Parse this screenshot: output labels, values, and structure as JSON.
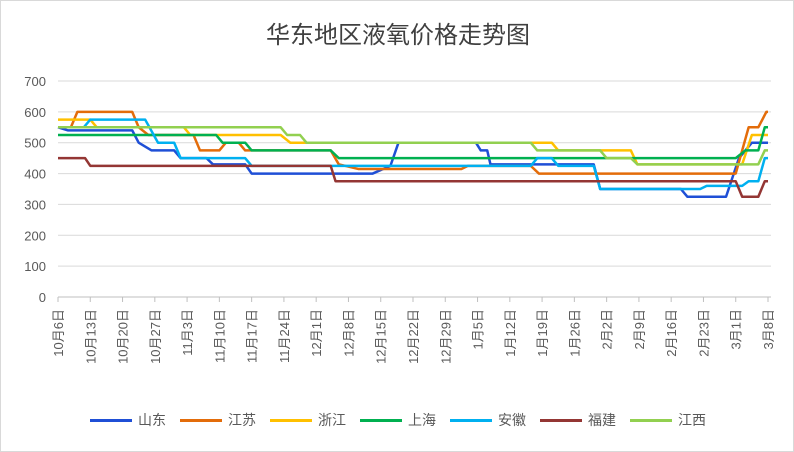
{
  "chart_data": {
    "type": "line",
    "title": "华东地区液氧价格走势图",
    "xlabel": "",
    "ylabel": "",
    "ylim": [
      0,
      700
    ],
    "yticks": [
      0,
      100,
      200,
      300,
      400,
      500,
      600,
      700
    ],
    "grid": true,
    "legend_position": "bottom",
    "categories": [
      "10月6日",
      "10月13日",
      "10月20日",
      "10月27日",
      "11月3日",
      "11月10日",
      "11月17日",
      "11月24日",
      "12月1日",
      "12月8日",
      "12月15日",
      "12月22日",
      "12月29日",
      "1月5日",
      "1月12日",
      "1月19日",
      "1月26日",
      "2月2日",
      "2月9日",
      "2月16日",
      "2月23日",
      "3月1日",
      "3月8日"
    ],
    "series": [
      {
        "name": "山东",
        "color": "#1f4fd6",
        "points": [
          [
            0,
            550
          ],
          [
            0.3,
            540
          ],
          [
            2.3,
            540
          ],
          [
            2.5,
            500
          ],
          [
            2.9,
            475
          ],
          [
            3.6,
            475
          ],
          [
            3.8,
            450
          ],
          [
            4.6,
            450
          ],
          [
            4.8,
            430
          ],
          [
            5.8,
            430
          ],
          [
            6.0,
            400
          ],
          [
            9.75,
            400
          ],
          [
            10.3,
            425
          ],
          [
            10.55,
            500
          ],
          [
            12.95,
            500
          ],
          [
            13.1,
            475
          ],
          [
            13.3,
            475
          ],
          [
            13.4,
            430
          ],
          [
            16.6,
            430
          ],
          [
            16.8,
            350
          ],
          [
            19.3,
            350
          ],
          [
            19.5,
            325
          ],
          [
            20.7,
            325
          ],
          [
            21.1,
            450
          ],
          [
            21.5,
            500
          ],
          [
            22,
            500
          ]
        ]
      },
      {
        "name": "江苏",
        "color": "#e36c0a",
        "points": [
          [
            0,
            550
          ],
          [
            0.4,
            550
          ],
          [
            0.6,
            600
          ],
          [
            2.3,
            600
          ],
          [
            2.5,
            550
          ],
          [
            2.8,
            525
          ],
          [
            4.2,
            525
          ],
          [
            4.4,
            475
          ],
          [
            5.0,
            475
          ],
          [
            5.2,
            500
          ],
          [
            5.6,
            500
          ],
          [
            5.8,
            475
          ],
          [
            8.45,
            475
          ],
          [
            8.7,
            430
          ],
          [
            9.3,
            415
          ],
          [
            12.5,
            415
          ],
          [
            12.7,
            425
          ],
          [
            14.65,
            425
          ],
          [
            14.9,
            400
          ],
          [
            21.0,
            400
          ],
          [
            21.4,
            550
          ],
          [
            21.7,
            550
          ],
          [
            21.95,
            600
          ],
          [
            22,
            600
          ]
        ]
      },
      {
        "name": "浙江",
        "color": "#ffc000",
        "points": [
          [
            0,
            575
          ],
          [
            1.0,
            575
          ],
          [
            1.2,
            550
          ],
          [
            3.9,
            550
          ],
          [
            4.1,
            525
          ],
          [
            6.9,
            525
          ],
          [
            7.2,
            500
          ],
          [
            15.3,
            500
          ],
          [
            15.5,
            475
          ],
          [
            17.75,
            475
          ],
          [
            17.95,
            430
          ],
          [
            21.2,
            430
          ],
          [
            21.5,
            525
          ],
          [
            22,
            525
          ]
        ]
      },
      {
        "name": "上海",
        "color": "#00b050",
        "points": [
          [
            0,
            525
          ],
          [
            4.9,
            525
          ],
          [
            5.1,
            500
          ],
          [
            5.8,
            500
          ],
          [
            6.0,
            475
          ],
          [
            8.45,
            475
          ],
          [
            8.7,
            450
          ],
          [
            21.0,
            450
          ],
          [
            21.3,
            475
          ],
          [
            21.7,
            475
          ],
          [
            21.9,
            550
          ],
          [
            22,
            550
          ]
        ]
      },
      {
        "name": "安徽",
        "color": "#00b0f0",
        "points": [
          [
            0,
            550
          ],
          [
            0.8,
            550
          ],
          [
            1.0,
            575
          ],
          [
            2.7,
            575
          ],
          [
            3.1,
            500
          ],
          [
            3.6,
            500
          ],
          [
            3.8,
            450
          ],
          [
            5.8,
            450
          ],
          [
            6.0,
            425
          ],
          [
            14.65,
            425
          ],
          [
            14.85,
            450
          ],
          [
            15.3,
            450
          ],
          [
            15.5,
            425
          ],
          [
            16.6,
            425
          ],
          [
            16.8,
            350
          ],
          [
            19.9,
            350
          ],
          [
            20.1,
            360
          ],
          [
            21.2,
            360
          ],
          [
            21.4,
            375
          ],
          [
            21.7,
            375
          ],
          [
            21.9,
            450
          ],
          [
            22,
            450
          ]
        ]
      },
      {
        "name": "福建",
        "color": "#943634",
        "points": [
          [
            0,
            450
          ],
          [
            0.84,
            450
          ],
          [
            1.0,
            425
          ],
          [
            8.45,
            425
          ],
          [
            8.6,
            375
          ],
          [
            21.0,
            375
          ],
          [
            21.2,
            325
          ],
          [
            21.7,
            325
          ],
          [
            21.9,
            375
          ],
          [
            22,
            375
          ]
        ]
      },
      {
        "name": "江西",
        "color": "#92d050",
        "points": [
          [
            0,
            550
          ],
          [
            6.9,
            550
          ],
          [
            7.1,
            525
          ],
          [
            7.5,
            525
          ],
          [
            7.7,
            500
          ],
          [
            14.65,
            500
          ],
          [
            14.85,
            475
          ],
          [
            16.8,
            475
          ],
          [
            17.0,
            450
          ],
          [
            17.75,
            450
          ],
          [
            17.95,
            430
          ],
          [
            21.7,
            430
          ],
          [
            21.9,
            475
          ],
          [
            22,
            475
          ]
        ]
      }
    ]
  }
}
